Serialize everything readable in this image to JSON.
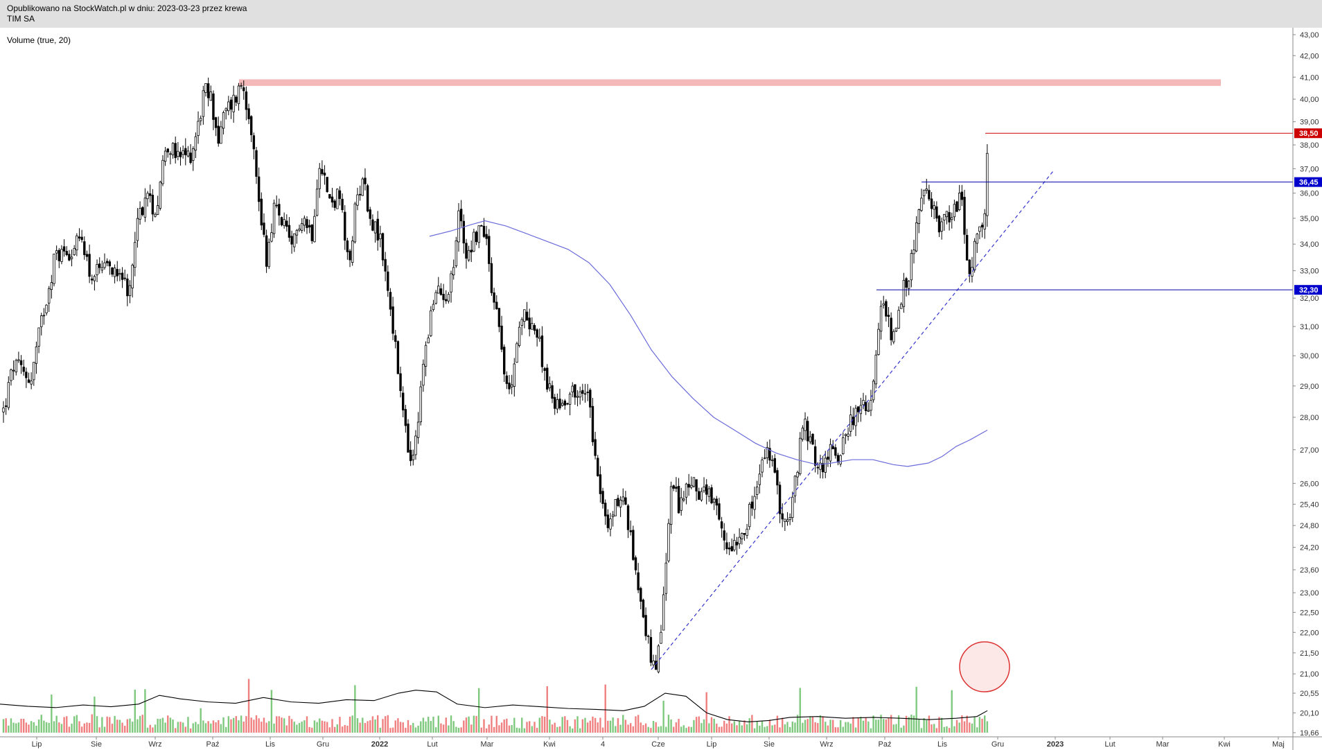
{
  "header": {
    "published": "Opublikowano na StockWatch.pl w dniu: 2023-03-23 przez krewa",
    "ticker": "TIM SA"
  },
  "indicator_label": "Volume (true, 20)",
  "colors": {
    "up_volume": "#7fc97f",
    "down_volume": "#f08080",
    "candle": "#000000",
    "moving_average": "#6b6bdb",
    "resistance_band": "#f4b8b8",
    "support_line": "#0000aa",
    "top_line": "#cc0000",
    "trendline": "#3333cc",
    "circle": "#dd3333"
  },
  "chart_data": {
    "type": "candlestick",
    "y_axis": {
      "scale": "log",
      "range": [
        19.66,
        43.0
      ],
      "ticks": [
        "43,00",
        "42,00",
        "41,00",
        "40,00",
        "39,00",
        "38,00",
        "37,00",
        "36,00",
        "35,00",
        "34,00",
        "33,00",
        "32,00",
        "31,00",
        "30,00",
        "29,00",
        "28,00",
        "27,00",
        "26,00",
        "25,40",
        "24,80",
        "24,20",
        "23,60",
        "23,00",
        "22,50",
        "22,00",
        "21,50",
        "21,00",
        "20,55",
        "20,10",
        "19,66"
      ]
    },
    "x_axis": {
      "labels": [
        {
          "text": "Lip",
          "bold": false
        },
        {
          "text": "Sie",
          "bold": false
        },
        {
          "text": "Wrz",
          "bold": false
        },
        {
          "text": "Paź",
          "bold": false
        },
        {
          "text": "Lis",
          "bold": false
        },
        {
          "text": "Gru",
          "bold": false
        },
        {
          "text": "2022",
          "bold": true
        },
        {
          "text": "Lut",
          "bold": false
        },
        {
          "text": "Mar",
          "bold": false
        },
        {
          "text": "Kwi",
          "bold": false
        },
        {
          "text": "4",
          "bold": false
        },
        {
          "text": "Cze",
          "bold": false
        },
        {
          "text": "Lip",
          "bold": false
        },
        {
          "text": "Sie",
          "bold": false
        },
        {
          "text": "Wrz",
          "bold": false
        },
        {
          "text": "Paź",
          "bold": false
        },
        {
          "text": "Lis",
          "bold": false
        },
        {
          "text": "Gru",
          "bold": false
        },
        {
          "text": "2023",
          "bold": true
        },
        {
          "text": "Lut",
          "bold": false
        },
        {
          "text": "Mar",
          "bold": false
        },
        {
          "text": "Kwi",
          "bold": false
        },
        {
          "text": "Maj",
          "bold": false
        }
      ]
    },
    "price_labels": [
      {
        "text": "38,50",
        "value": 38.5,
        "color": "#cc0000"
      },
      {
        "text": "36,45",
        "value": 36.45,
        "color": "#0000cc"
      },
      {
        "text": "32,30",
        "value": 32.3,
        "color": "#0000cc"
      }
    ],
    "resistance_zone": [
      40.6,
      40.9
    ],
    "price_path": [
      [
        0,
        28.2
      ],
      [
        15,
        29.7
      ],
      [
        40,
        29.2
      ],
      [
        55,
        31.2
      ],
      [
        75,
        33.6
      ],
      [
        100,
        33.8
      ],
      [
        115,
        34.2
      ],
      [
        125,
        32.8
      ],
      [
        150,
        33.0
      ],
      [
        170,
        33.2
      ],
      [
        180,
        31.6
      ],
      [
        190,
        34.5
      ],
      [
        205,
        35.9
      ],
      [
        220,
        35.3
      ],
      [
        235,
        38.2
      ],
      [
        250,
        37.4
      ],
      [
        270,
        37.6
      ],
      [
        280,
        38.7
      ],
      [
        290,
        40.4
      ],
      [
        300,
        40.0
      ],
      [
        310,
        38.2
      ],
      [
        320,
        39.4
      ],
      [
        335,
        40.1
      ],
      [
        345,
        40.8
      ],
      [
        358,
        38.8
      ],
      [
        365,
        36.5
      ],
      [
        380,
        33.4
      ],
      [
        390,
        35.4
      ],
      [
        405,
        34.8
      ],
      [
        415,
        33.6
      ],
      [
        430,
        35.2
      ],
      [
        445,
        34.4
      ],
      [
        457,
        37.6
      ],
      [
        470,
        35.6
      ],
      [
        485,
        35.9
      ],
      [
        498,
        33.0
      ],
      [
        508,
        35.4
      ],
      [
        518,
        36.8
      ],
      [
        528,
        35.2
      ],
      [
        545,
        34.0
      ],
      [
        560,
        31.4
      ],
      [
        570,
        29.3
      ],
      [
        582,
        27.2
      ],
      [
        590,
        26.4
      ],
      [
        598,
        27.8
      ],
      [
        610,
        30.6
      ],
      [
        625,
        32.2
      ],
      [
        640,
        32.2
      ],
      [
        650,
        33.2
      ],
      [
        658,
        35.4
      ],
      [
        668,
        33.6
      ],
      [
        682,
        34.4
      ],
      [
        695,
        34.6
      ],
      [
        705,
        32.4
      ],
      [
        718,
        30.8
      ],
      [
        728,
        28.4
      ],
      [
        740,
        30.4
      ],
      [
        752,
        31.4
      ],
      [
        765,
        31.1
      ],
      [
        775,
        30.2
      ],
      [
        790,
        28.6
      ],
      [
        805,
        28.4
      ],
      [
        820,
        28.9
      ],
      [
        835,
        28.6
      ],
      [
        845,
        29.0
      ],
      [
        850,
        27.6
      ],
      [
        860,
        26.0
      ],
      [
        872,
        24.6
      ],
      [
        882,
        25.4
      ],
      [
        895,
        25.6
      ],
      [
        905,
        24.4
      ],
      [
        915,
        23.4
      ],
      [
        925,
        22.3
      ],
      [
        935,
        21.3
      ],
      [
        942,
        20.9
      ],
      [
        948,
        21.9
      ],
      [
        958,
        24.0
      ],
      [
        962,
        26.0
      ],
      [
        975,
        25.4
      ],
      [
        990,
        26.0
      ],
      [
        1005,
        25.8
      ],
      [
        1018,
        25.6
      ],
      [
        1030,
        25.1
      ],
      [
        1042,
        24.2
      ],
      [
        1055,
        24.4
      ],
      [
        1070,
        24.8
      ],
      [
        1085,
        25.6
      ],
      [
        1095,
        26.6
      ],
      [
        1105,
        27.0
      ],
      [
        1115,
        25.9
      ],
      [
        1125,
        25.0
      ],
      [
        1135,
        24.9
      ],
      [
        1145,
        26.4
      ],
      [
        1155,
        27.8
      ],
      [
        1165,
        27.2
      ],
      [
        1175,
        26.4
      ],
      [
        1185,
        26.6
      ],
      [
        1195,
        27.0
      ],
      [
        1205,
        26.8
      ],
      [
        1215,
        27.6
      ],
      [
        1225,
        28.0
      ],
      [
        1240,
        28.2
      ],
      [
        1252,
        28.6
      ],
      [
        1262,
        30.4
      ],
      [
        1268,
        31.8
      ],
      [
        1278,
        31.0
      ],
      [
        1288,
        30.6
      ],
      [
        1298,
        32.2
      ],
      [
        1306,
        32.8
      ],
      [
        1312,
        33.6
      ],
      [
        1320,
        35.2
      ],
      [
        1330,
        36.0
      ],
      [
        1340,
        35.4
      ],
      [
        1350,
        34.8
      ],
      [
        1360,
        35.0
      ],
      [
        1372,
        35.4
      ],
      [
        1382,
        35.8
      ],
      [
        1388,
        34.2
      ],
      [
        1394,
        32.8
      ],
      [
        1402,
        33.8
      ],
      [
        1410,
        34.4
      ],
      [
        1417,
        35.6
      ],
      [
        1421,
        38.2
      ],
      [
        1425,
        38.4
      ],
      [
        1428,
        37.9
      ]
    ],
    "volume_moving_average": [
      [
        0,
        20.3
      ],
      [
        40,
        20.25
      ],
      [
        80,
        20.22
      ],
      [
        120,
        20.28
      ],
      [
        160,
        20.24
      ],
      [
        200,
        20.3
      ],
      [
        230,
        20.5
      ],
      [
        260,
        20.42
      ],
      [
        300,
        20.35
      ],
      [
        340,
        20.32
      ],
      [
        380,
        20.45
      ],
      [
        420,
        20.35
      ],
      [
        460,
        20.32
      ],
      [
        500,
        20.4
      ],
      [
        540,
        20.38
      ],
      [
        575,
        20.55
      ],
      [
        600,
        20.62
      ],
      [
        630,
        20.58
      ],
      [
        660,
        20.3
      ],
      [
        700,
        20.22
      ],
      [
        740,
        20.28
      ],
      [
        780,
        20.24
      ],
      [
        820,
        20.2
      ],
      [
        860,
        20.18
      ],
      [
        900,
        20.15
      ],
      [
        930,
        20.25
      ],
      [
        960,
        20.55
      ],
      [
        990,
        20.48
      ],
      [
        1020,
        20.1
      ],
      [
        1050,
        19.95
      ],
      [
        1080,
        19.9
      ],
      [
        1110,
        19.93
      ],
      [
        1140,
        20.0
      ],
      [
        1180,
        20.02
      ],
      [
        1220,
        19.98
      ],
      [
        1260,
        20.0
      ],
      [
        1300,
        19.98
      ],
      [
        1340,
        19.95
      ],
      [
        1380,
        19.98
      ],
      [
        1410,
        20.02
      ],
      [
        1425,
        20.15
      ]
    ],
    "moving_average": [
      [
        620,
        34.3
      ],
      [
        650,
        34.5
      ],
      [
        680,
        34.75
      ],
      [
        700,
        34.9
      ],
      [
        730,
        34.7
      ],
      [
        760,
        34.4
      ],
      [
        790,
        34.1
      ],
      [
        820,
        33.8
      ],
      [
        850,
        33.3
      ],
      [
        880,
        32.5
      ],
      [
        910,
        31.4
      ],
      [
        940,
        30.2
      ],
      [
        970,
        29.3
      ],
      [
        1000,
        28.6
      ],
      [
        1030,
        28.0
      ],
      [
        1060,
        27.6
      ],
      [
        1090,
        27.2
      ],
      [
        1120,
        26.9
      ],
      [
        1150,
        26.7
      ],
      [
        1180,
        26.55
      ],
      [
        1200,
        26.6
      ],
      [
        1230,
        26.7
      ],
      [
        1260,
        26.7
      ],
      [
        1290,
        26.55
      ],
      [
        1310,
        26.5
      ],
      [
        1340,
        26.6
      ],
      [
        1360,
        26.8
      ],
      [
        1380,
        27.1
      ],
      [
        1400,
        27.3
      ],
      [
        1425,
        27.6
      ]
    ],
    "trendline": [
      [
        940,
        21.1
      ],
      [
        1520,
        36.9
      ]
    ],
    "support_line": {
      "x_start": 1265,
      "value": 32.3
    },
    "upper_support": {
      "x_start": 1330,
      "value": 36.45
    },
    "top_line": {
      "x_start": 1422,
      "value": 38.5
    }
  }
}
